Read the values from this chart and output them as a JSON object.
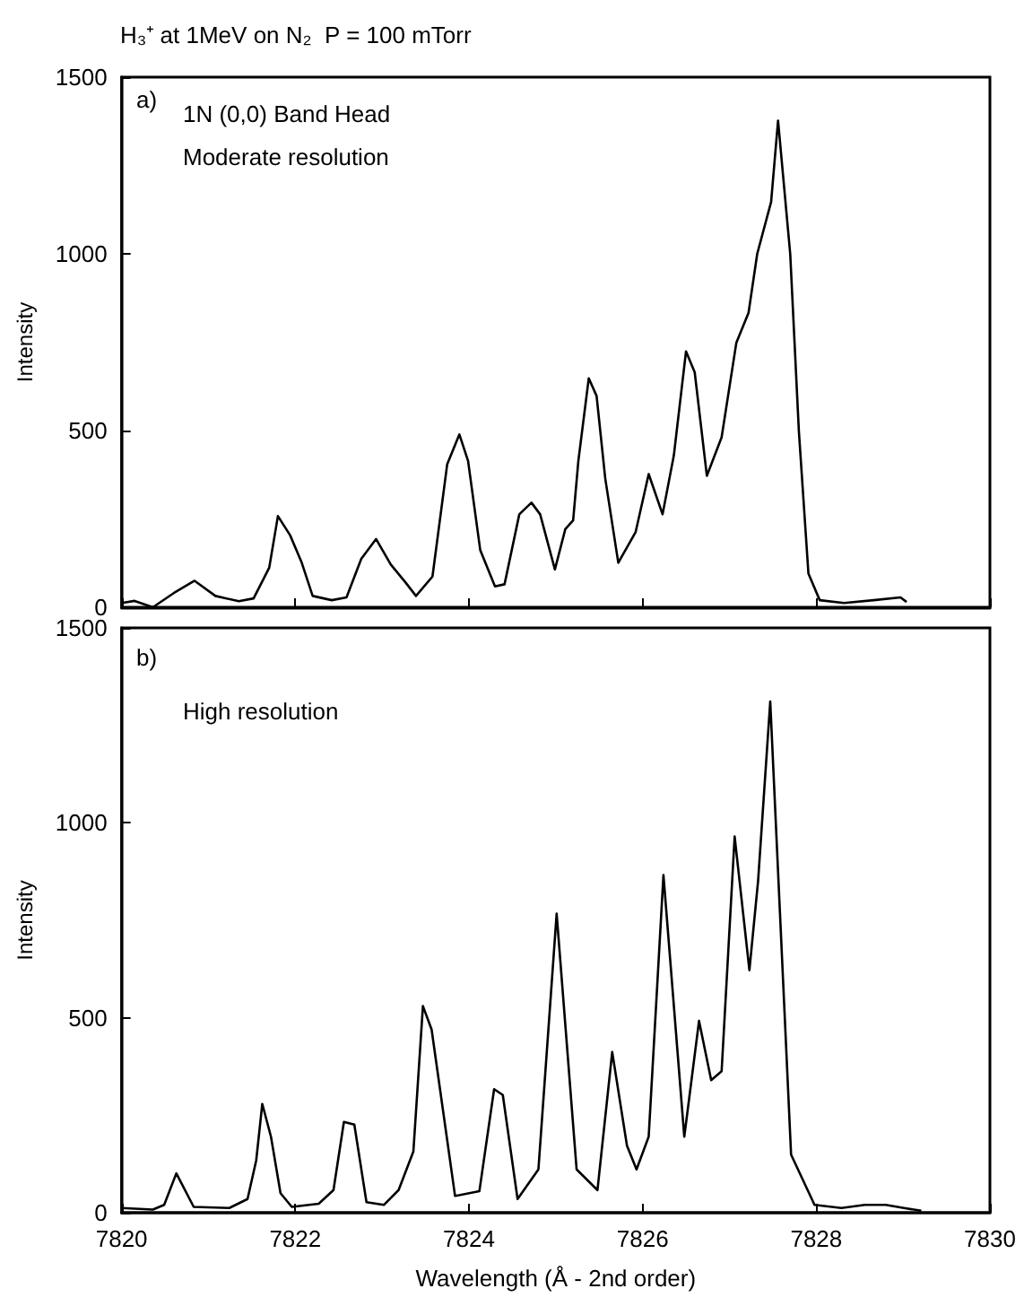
{
  "chart_data": [
    {
      "type": "line",
      "title": "H₃⁺ at 1MeV on N₂  P = 100 mTorr",
      "ylabel": "Intensity",
      "annotations": [
        "a)",
        "1N (0,0) Band Head",
        "Moderate resolution"
      ],
      "x": [
        7820.0,
        7820.15,
        7820.36,
        7820.6,
        7820.84,
        7821.08,
        7821.35,
        7821.52,
        7821.7,
        7821.8,
        7821.94,
        7822.07,
        7822.2,
        7822.42,
        7822.59,
        7822.76,
        7822.93,
        7823.1,
        7823.27,
        7823.39,
        7823.58,
        7823.75,
        7823.89,
        7823.99,
        7824.13,
        7824.3,
        7824.41,
        7824.58,
        7824.72,
        7824.82,
        7824.99,
        7825.11,
        7825.2,
        7825.26,
        7825.38,
        7825.47,
        7825.57,
        7825.72,
        7825.92,
        7826.07,
        7826.23,
        7826.36,
        7826.5,
        7826.6,
        7826.74,
        7826.91,
        7827.08,
        7827.22,
        7827.32,
        7827.48,
        7827.56,
        7827.7,
        7827.8,
        7827.91,
        7828.04,
        7828.32,
        7828.66,
        7828.97,
        7829.04
      ],
      "series": [
        {
          "color": "#000000",
          "values": [
            12,
            18,
            0,
            40,
            75,
            32,
            17,
            25,
            112,
            258,
            204,
            129,
            32,
            20,
            28,
            137,
            193,
            121,
            70,
            32,
            87,
            405,
            489,
            414,
            162,
            59,
            65,
            263,
            296,
            263,
            107,
            221,
            246,
            414,
            648,
            598,
            364,
            126,
            213,
            377,
            263,
            430,
            724,
            665,
            372,
            481,
            749,
            833,
            1000,
            1147,
            1377,
            1000,
            497,
            95,
            20,
            12,
            20,
            28,
            15
          ]
        }
      ],
      "xlim": [
        7820,
        7830
      ],
      "xticks": [
        7820,
        7822,
        7824,
        7826,
        7828,
        7830
      ],
      "ylim": [
        0,
        1500
      ],
      "yticks": [
        0,
        500,
        1000,
        1500
      ],
      "tick_labels": "y",
      "marker": "none",
      "grid": false
    },
    {
      "type": "line",
      "xlabel": "Wavelength (Å - 2nd order)",
      "ylabel": "Intensity",
      "annotations": [
        "b)",
        "High resolution"
      ],
      "x": [
        7820.0,
        7820.36,
        7820.49,
        7820.63,
        7820.83,
        7821.24,
        7821.45,
        7821.55,
        7821.62,
        7821.72,
        7821.83,
        7821.96,
        7822.27,
        7822.44,
        7822.56,
        7822.68,
        7822.82,
        7823.02,
        7823.19,
        7823.36,
        7823.47,
        7823.57,
        7823.84,
        7824.12,
        7824.29,
        7824.39,
        7824.56,
        7824.8,
        7825.01,
        7825.24,
        7825.48,
        7825.65,
        7825.82,
        7825.93,
        7826.07,
        7826.24,
        7826.48,
        7826.65,
        7826.79,
        7826.91,
        7827.06,
        7827.23,
        7827.33,
        7827.47,
        7827.71,
        7827.98,
        7828.29,
        7828.56,
        7828.8,
        7829.01,
        7829.21
      ],
      "series": [
        {
          "color": "#000000",
          "values": [
            12,
            8,
            20,
            101,
            15,
            12,
            35,
            134,
            279,
            195,
            50,
            15,
            23,
            58,
            233,
            226,
            27,
            20,
            58,
            157,
            530,
            470,
            43,
            55,
            317,
            302,
            35,
            111,
            767,
            111,
            58,
            412,
            172,
            111,
            195,
            866,
            195,
            492,
            340,
            363,
            965,
            622,
            851,
            1311,
            149,
            20,
            12,
            20,
            20,
            12,
            5
          ]
        }
      ],
      "xlim": [
        7820,
        7830
      ],
      "xticks": [
        7820,
        7822,
        7824,
        7826,
        7828,
        7830
      ],
      "ylim": [
        0,
        1500
      ],
      "yticks": [
        0,
        500,
        1000,
        1500
      ],
      "marker": "none",
      "grid": false
    }
  ]
}
